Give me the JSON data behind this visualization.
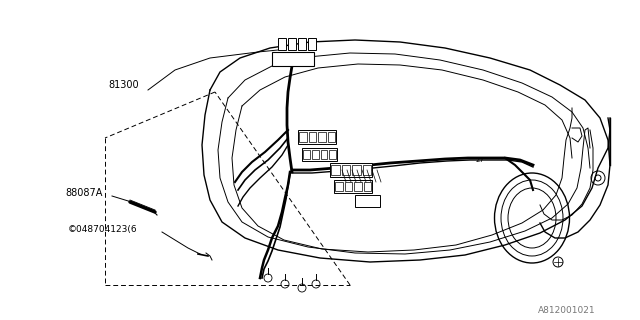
{
  "background_color": "#ffffff",
  "line_color": "#000000",
  "part_label_81300": "81300",
  "part_label_88087A": "88087A",
  "part_label_circle": "©048704123(6",
  "diagram_id": "A812001021",
  "fig_width": 6.4,
  "fig_height": 3.2,
  "dpi": 100
}
